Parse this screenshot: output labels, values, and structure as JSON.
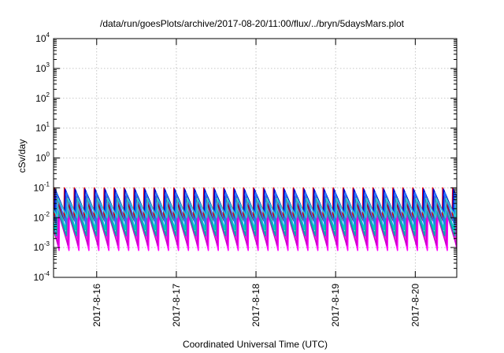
{
  "chart_data": {
    "type": "line",
    "title": "/data/run/goesPlots/archive/2017-08-20/11:00/flux/../bryn/5daysMars.plot",
    "xlabel": "Coordinated Universal Time (UTC)",
    "ylabel": "cSv/day",
    "x_range": [
      "2017-08-15T11:00",
      "2017-08-20T12:30"
    ],
    "x_tick_labels": [
      "2017-8-16",
      "2017-8-17",
      "2017-8-18",
      "2017-8-19",
      "2017-8-20"
    ],
    "y_scale": "log",
    "ylim": [
      0.0001,
      10000
    ],
    "y_tick_labels": [
      {
        "base": "10",
        "exp": "4"
      },
      {
        "base": "10",
        "exp": "3"
      },
      {
        "base": "10",
        "exp": "2"
      },
      {
        "base": "10",
        "exp": "1"
      },
      {
        "base": "10",
        "exp": "0"
      },
      {
        "base": "10",
        "exp": "-1"
      },
      {
        "base": "10",
        "exp": "-2"
      },
      {
        "base": "10",
        "exp": "-3"
      },
      {
        "base": "10",
        "exp": "-4"
      }
    ],
    "grid": true,
    "sawtooth_period_hours": 3,
    "series": [
      {
        "color": "#ff00ff",
        "peak": 0.025,
        "trough": 0.0008,
        "phase": 0.55
      },
      {
        "color": "#cc00cc",
        "peak": 0.015,
        "trough": 0.0012,
        "phase": 0.45
      },
      {
        "color": "#ee22dd",
        "peak": 0.03,
        "trough": 0.002,
        "phase": 0.35
      },
      {
        "color": "#00aaaa",
        "peak": 0.022,
        "trough": 0.0025,
        "phase": 0.3
      },
      {
        "color": "#00c4c4",
        "peak": 0.05,
        "trough": 0.004,
        "phase": 0.2
      },
      {
        "color": "#990033",
        "peak": 0.055,
        "trough": 0.008,
        "phase": 0.1
      },
      {
        "color": "#ee0000",
        "peak": 0.1,
        "trough": 0.01,
        "phase": 0.05
      },
      {
        "color": "#0000cc",
        "peak": 0.09,
        "trough": 0.015,
        "phase": 0.12
      },
      {
        "color": "#2277ff",
        "peak": 0.07,
        "trough": 0.006,
        "phase": 0.25
      },
      {
        "color": "#33cccc",
        "peak": 0.045,
        "trough": 0.01,
        "phase": 0.4
      }
    ]
  }
}
